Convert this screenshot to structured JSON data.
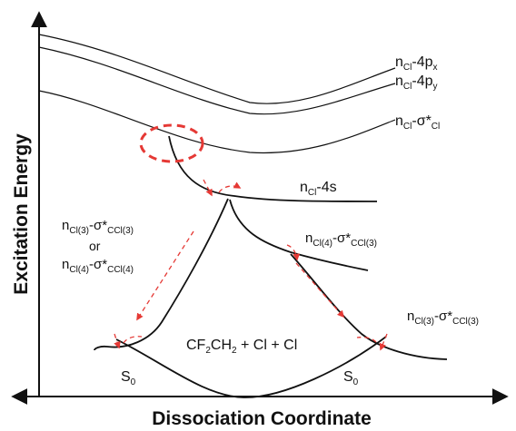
{
  "axes": {
    "y_title": "Excitation Energy",
    "x_title": "Dissociation Coordinate"
  },
  "curve_labels": {
    "n4px": {
      "a": "n",
      "a_sub": "Cl",
      "b": "-4p",
      "b_sub": "x"
    },
    "n4py": {
      "a": "n",
      "a_sub": "Cl",
      "b": "-4p",
      "b_sub": "y"
    },
    "nsig": {
      "a": "n",
      "a_sub": "Cl",
      "b": "-σ*",
      "b_sub": "Cl"
    },
    "n4s": {
      "a": "n",
      "a_sub": "Cl",
      "b": "-4s"
    },
    "ncl4": {
      "a": "n",
      "a_sub": "Cl(4)",
      "b": "-σ*",
      "b_sub": "CCl(3)"
    },
    "ncl3r": {
      "a": "n",
      "a_sub": "Cl(3)",
      "b": "-σ*",
      "b_sub": "CCl(3)"
    },
    "left1": {
      "a": "n",
      "a_sub": "Cl(3)",
      "b": "-σ*",
      "b_sub": "CCl(3)"
    },
    "or_text": "or",
    "left2": {
      "a": "n",
      "a_sub": "Cl(4)",
      "b": "-σ*",
      "b_sub": "CCl(4)"
    }
  },
  "products": {
    "a": "CF",
    "a_sub": "2",
    "b": "CH",
    "b_sub": "2",
    "c": " + Cl + Cl"
  },
  "s0_left": {
    "a": "S",
    "a_sub": "0"
  },
  "s0_right": {
    "a": "S",
    "a_sub": "0"
  },
  "colors": {
    "curve": "#111111",
    "arrow": "#e53935",
    "ellipse": "#e53935"
  }
}
